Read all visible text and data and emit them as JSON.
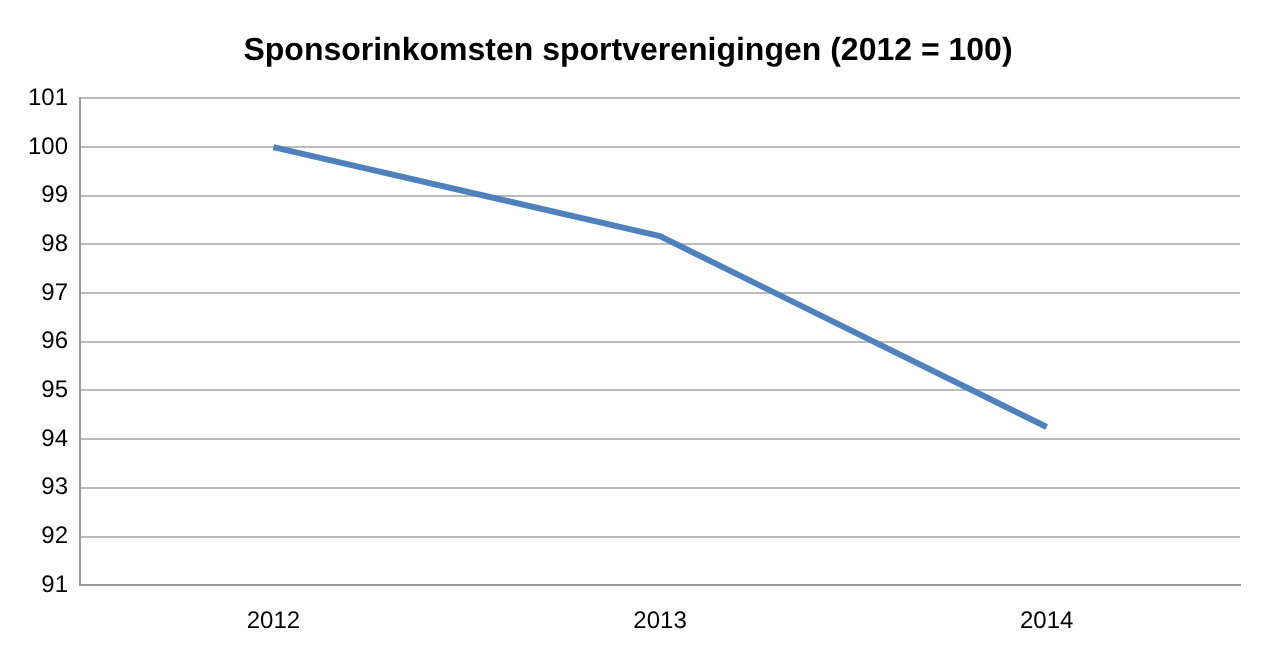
{
  "chart_data": {
    "type": "line",
    "title": "Sponsorinkomsten sportverenigingen (2012 = 100)",
    "categories": [
      "2012",
      "2013",
      "2014"
    ],
    "series": [
      {
        "color": "#4f81bd",
        "values": [
          100,
          98.17,
          94.25
        ]
      }
    ],
    "ylim": [
      91,
      101
    ],
    "yticks": [
      91,
      92,
      93,
      94,
      95,
      96,
      97,
      98,
      99,
      100,
      101
    ],
    "grid": "y",
    "legend": false,
    "marker": "none"
  }
}
